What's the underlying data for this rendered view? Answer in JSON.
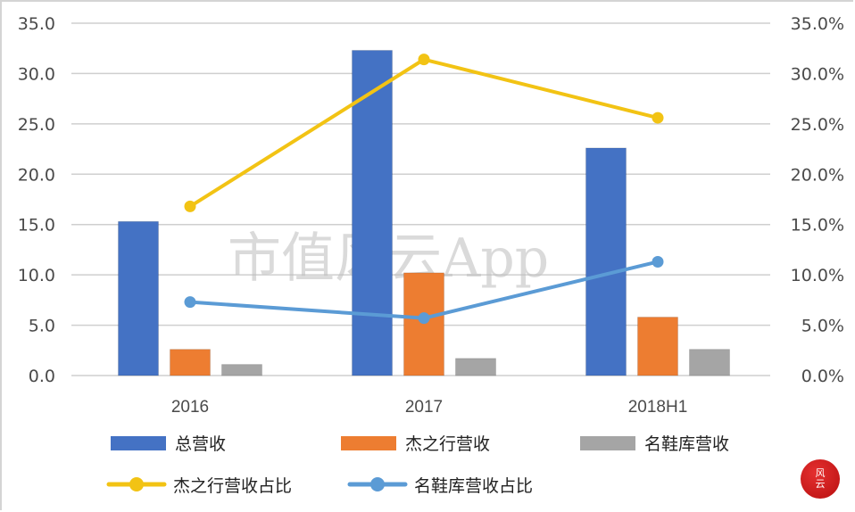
{
  "chart_data": {
    "type": "bar",
    "combo": "bar + line (dual axis)",
    "title": "",
    "xlabel": "",
    "ylabel": "",
    "y2label": "",
    "categories": [
      "2016",
      "2017",
      "2018H1"
    ],
    "series": [
      {
        "name": "总营收",
        "type": "bar",
        "axis": "left",
        "color": "#4472c4",
        "values": [
          15.3,
          32.3,
          22.6
        ]
      },
      {
        "name": "杰之行营收",
        "type": "bar",
        "axis": "left",
        "color": "#ed7d31",
        "values": [
          2.6,
          10.2,
          5.8
        ]
      },
      {
        "name": "名鞋库营收",
        "type": "bar",
        "axis": "left",
        "color": "#a5a5a5",
        "values": [
          1.1,
          1.7,
          2.6
        ]
      },
      {
        "name": "杰之行营收占比",
        "type": "line",
        "axis": "right",
        "color": "#f2c314",
        "values": [
          16.8,
          31.4,
          25.6
        ],
        "unit": "%"
      },
      {
        "name": "名鞋库营收占比",
        "type": "line",
        "axis": "right",
        "color": "#5b9bd5",
        "values": [
          7.3,
          5.7,
          11.3
        ],
        "unit": "%"
      }
    ],
    "ylim": [
      0,
      35
    ],
    "y2lim": [
      0,
      35
    ],
    "yticks": [
      "0.0",
      "5.0",
      "10.0",
      "15.0",
      "20.0",
      "25.0",
      "30.0",
      "35.0"
    ],
    "y2ticks": [
      "0.0%",
      "5.0%",
      "10.0%",
      "15.0%",
      "20.0%",
      "25.0%",
      "30.0%",
      "35.0%"
    ],
    "grid": true,
    "legend_position": "bottom"
  },
  "legend": {
    "row1": [
      "总营收",
      "杰之行营收",
      "名鞋库营收"
    ],
    "row2": [
      "杰之行营收占比",
      "名鞋库营收占比"
    ]
  },
  "watermark": "市值风云App",
  "logo": {
    "line1": "风",
    "line2": "云"
  }
}
